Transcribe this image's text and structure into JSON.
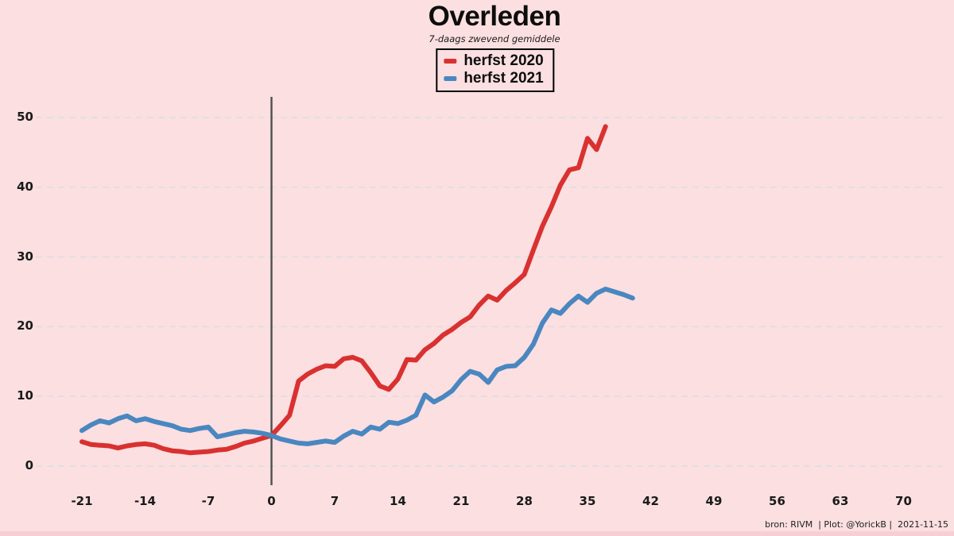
{
  "title": "Overleden",
  "subtitle": "7-daags zwevend gemiddele",
  "attribution": "bron: RIVM  | Plot: @YorickB |  2021-11-15",
  "colors": {
    "background": "#fbdfe1",
    "bottom_strip": "#f8ced3",
    "gridline": "#d9dedf",
    "zero_line": "#4f4f4f",
    "herfst_2020": "#d93130",
    "herfst_2021": "#4a87c0"
  },
  "chart_data": {
    "type": "line",
    "title": "Overleden",
    "subtitle": "7-daags zwevend gemiddele",
    "xlabel": "",
    "ylabel": "",
    "x_ticks": [
      -21,
      -14,
      -7,
      0,
      7,
      14,
      21,
      28,
      35,
      42,
      49,
      56,
      63,
      70
    ],
    "y_ticks": [
      0,
      10,
      20,
      30,
      40,
      50
    ],
    "xlim": [
      -26,
      74
    ],
    "ylim": [
      0,
      52
    ],
    "grid": "horizontal-dashed",
    "legend_position": "top-center",
    "vline_x": 0,
    "series": [
      {
        "name": "herfst 2020",
        "color": "#d93130",
        "x_start": -21,
        "x_step": 1,
        "values": [
          3.5,
          3.1,
          3.0,
          2.9,
          2.6,
          2.9,
          3.1,
          3.2,
          3.0,
          2.5,
          2.2,
          2.1,
          1.9,
          2.0,
          2.1,
          2.3,
          2.4,
          2.8,
          3.3,
          3.6,
          4.0,
          4.4,
          5.8,
          7.3,
          12.2,
          13.2,
          13.9,
          14.4,
          14.3,
          15.4,
          15.6,
          15.1,
          13.4,
          11.5,
          11.0,
          12.5,
          15.3,
          15.2,
          16.7,
          17.6,
          18.8,
          19.6,
          20.6,
          21.4,
          23.1,
          24.4,
          23.8,
          25.2,
          26.3,
          27.5,
          31.0,
          34.4,
          37.2,
          40.3,
          42.5,
          42.8,
          47.0,
          45.4,
          48.7
        ]
      },
      {
        "name": "herfst 2021",
        "color": "#4a87c0",
        "x_start": -21,
        "x_step": 1,
        "values": [
          5.1,
          5.9,
          6.5,
          6.2,
          6.8,
          7.2,
          6.5,
          6.8,
          6.4,
          6.1,
          5.8,
          5.3,
          5.1,
          5.4,
          5.6,
          4.2,
          4.5,
          4.8,
          5.0,
          4.9,
          4.7,
          4.4,
          3.9,
          3.6,
          3.3,
          3.2,
          3.4,
          3.6,
          3.4,
          4.3,
          5.0,
          4.6,
          5.6,
          5.3,
          6.3,
          6.1,
          6.6,
          7.3,
          10.2,
          9.2,
          9.9,
          10.8,
          12.4,
          13.6,
          13.2,
          12.0,
          13.8,
          14.3,
          14.4,
          15.6,
          17.5,
          20.5,
          22.4,
          21.9,
          23.3,
          24.4,
          23.5,
          24.8,
          25.4,
          25.0,
          24.6,
          24.1
        ]
      }
    ]
  }
}
